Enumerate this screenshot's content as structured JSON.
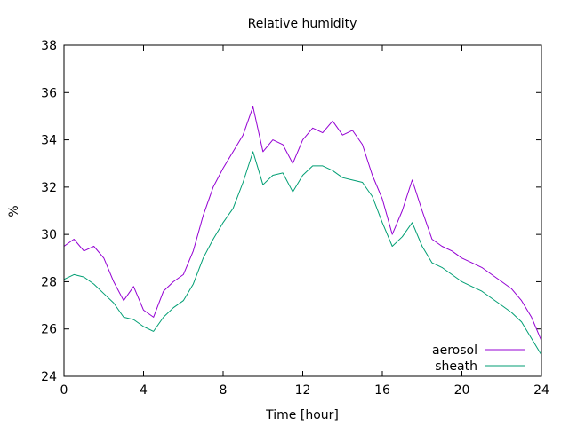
{
  "chart_data": {
    "type": "line",
    "title": "Relative humidity",
    "xlabel": "Time [hour]",
    "ylabel": "%",
    "xlim": [
      0,
      24
    ],
    "ylim": [
      24,
      38
    ],
    "xticks": [
      "0",
      "4",
      "8",
      "12",
      "16",
      "20",
      "24"
    ],
    "yticks": [
      "24",
      "26",
      "28",
      "30",
      "32",
      "34",
      "36",
      "38"
    ],
    "grid": false,
    "legend_position": "bottom-right",
    "x": [
      0,
      0.5,
      1,
      1.5,
      2,
      2.5,
      3,
      3.5,
      4,
      4.5,
      5,
      5.5,
      6,
      6.5,
      7,
      7.5,
      8,
      8.5,
      9,
      9.5,
      10,
      10.5,
      11,
      11.5,
      12,
      12.5,
      13,
      13.5,
      14,
      14.5,
      15,
      15.5,
      16,
      16.5,
      17,
      17.5,
      18,
      18.5,
      19,
      19.5,
      20,
      20.5,
      21,
      21.5,
      22,
      22.5,
      23,
      23.5,
      24
    ],
    "series": [
      {
        "name": "aerosol",
        "color": "#9400d3",
        "values": [
          29.5,
          29.8,
          29.3,
          29.5,
          29.0,
          28.0,
          27.2,
          27.8,
          26.8,
          26.5,
          27.6,
          28.0,
          28.3,
          29.3,
          30.8,
          32.0,
          32.8,
          33.5,
          34.2,
          35.4,
          33.5,
          34.0,
          33.8,
          33.0,
          34.0,
          34.5,
          34.3,
          34.8,
          34.2,
          34.4,
          33.8,
          32.5,
          31.5,
          30.0,
          31.0,
          32.3,
          31.0,
          29.8,
          29.5,
          29.3,
          29.0,
          28.8,
          28.6,
          28.3,
          28.0,
          27.7,
          27.2,
          26.5,
          25.5
        ]
      },
      {
        "name": "sheath",
        "color": "#009e73",
        "values": [
          28.1,
          28.3,
          28.2,
          27.9,
          27.5,
          27.1,
          26.5,
          26.4,
          26.1,
          25.9,
          26.5,
          26.9,
          27.2,
          27.9,
          29.0,
          29.8,
          30.5,
          31.1,
          32.2,
          33.5,
          32.1,
          32.5,
          32.6,
          31.8,
          32.5,
          32.9,
          32.9,
          32.7,
          32.4,
          32.3,
          32.2,
          31.6,
          30.5,
          29.5,
          29.9,
          30.5,
          29.5,
          28.8,
          28.6,
          28.3,
          28.0,
          27.8,
          27.6,
          27.3,
          27.0,
          26.7,
          26.3,
          25.6,
          24.9
        ]
      }
    ]
  }
}
